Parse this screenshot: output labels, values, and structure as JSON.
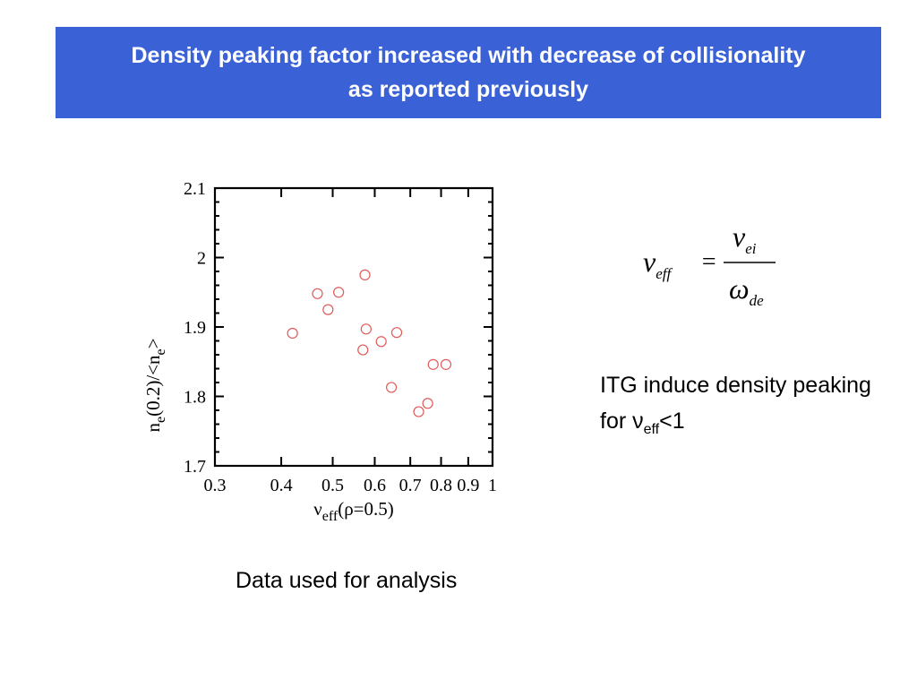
{
  "slide": {
    "title_line1": "Density peaking factor increased with decrease of collisionality",
    "title_line2": "as reported previously",
    "note_prefix": "ITG induce density peaking for ",
    "note_nu": "ν",
    "note_sub": "eff",
    "note_suffix": "<1",
    "caption": "Data used for analysis",
    "formula": {
      "lhs_symbol": "ν",
      "lhs_sub": "eff",
      "equals": "=",
      "num_symbol": "ν",
      "num_sub": "ei",
      "den_symbol": "ω",
      "den_sub": "de"
    }
  },
  "colors": {
    "title_bg": "#3a62d6",
    "title_text": "#ffffff",
    "marker": "#e05a5a"
  },
  "chart_data": {
    "type": "scatter",
    "xscale": "log",
    "xlim": [
      0.3,
      1.0
    ],
    "ylim": [
      1.7,
      2.1
    ],
    "xticks": [
      0.3,
      0.4,
      0.5,
      0.6,
      0.7,
      0.8,
      0.9,
      1
    ],
    "xtick_labels": [
      "0.3",
      "0.4",
      "0.5",
      "0.6",
      "0.7",
      "0.8",
      "0.9",
      "1"
    ],
    "yticks": [
      1.7,
      1.8,
      1.9,
      2.0,
      2.1
    ],
    "ytick_labels": [
      "1.7",
      "1.8",
      "1.9",
      "2",
      "2.1"
    ],
    "xlabel_main": "ν",
    "xlabel_sub": "eff",
    "xlabel_rest": "(ρ=0.5)",
    "ylabel_a": "n",
    "ylabel_a_sub": "e",
    "ylabel_b": "(0.2)/<n",
    "ylabel_b_sub": "e",
    "ylabel_c": ">",
    "marker": "open-circle",
    "points": [
      {
        "x": 0.42,
        "y": 1.891
      },
      {
        "x": 0.468,
        "y": 1.948
      },
      {
        "x": 0.49,
        "y": 1.925
      },
      {
        "x": 0.513,
        "y": 1.95
      },
      {
        "x": 0.57,
        "y": 1.867
      },
      {
        "x": 0.575,
        "y": 1.975
      },
      {
        "x": 0.578,
        "y": 1.897
      },
      {
        "x": 0.617,
        "y": 1.879
      },
      {
        "x": 0.645,
        "y": 1.813
      },
      {
        "x": 0.66,
        "y": 1.892
      },
      {
        "x": 0.726,
        "y": 1.778
      },
      {
        "x": 0.755,
        "y": 1.79
      },
      {
        "x": 0.773,
        "y": 1.846
      },
      {
        "x": 0.817,
        "y": 1.846
      }
    ]
  }
}
